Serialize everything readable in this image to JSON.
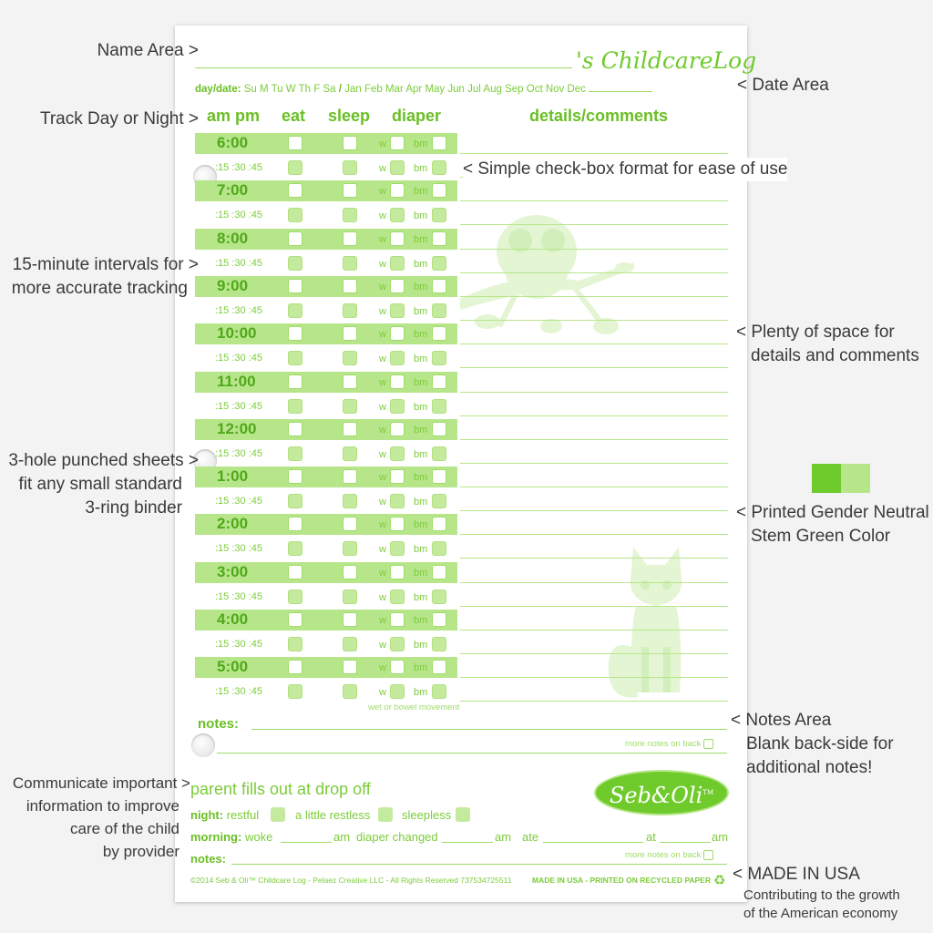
{
  "sheet": {
    "title": "'s ChildcareLog",
    "day_date_label": "day/date:",
    "days": [
      "Su",
      "M",
      "Tu",
      "W",
      "Th",
      "F",
      "Sa"
    ],
    "separator": "/",
    "months": [
      "Jan",
      "Feb",
      "Mar",
      "Apr",
      "May",
      "Jun",
      "Jul",
      "Aug",
      "Sep",
      "Oct",
      "Nov",
      "Dec"
    ],
    "columns": {
      "ampm": "am pm",
      "eat": "eat",
      "sleep": "sleep",
      "diaper": "diaper",
      "details": "details/comments"
    },
    "hours": [
      "6:00",
      "7:00",
      "8:00",
      "9:00",
      "10:00",
      "11:00",
      "12:00",
      "1:00",
      "2:00",
      "3:00",
      "4:00",
      "5:00"
    ],
    "quarters": ":15 :30 :45",
    "w_label": "w",
    "bm_label": "bm",
    "diaper_note": "wet or bowel movement",
    "notes_label": "notes:",
    "more_notes": "more notes on back",
    "parent": {
      "heading": "parent fills out at drop off",
      "night_label": "night:",
      "night_options": [
        "restful",
        "a little restless",
        "sleepless"
      ],
      "morning_label": "morning:",
      "woke": "woke",
      "am": "am",
      "diaper_changed": "diaper changed",
      "ate": "ate",
      "at": "at",
      "notes_label": "notes:",
      "more_notes": "more notes on back"
    },
    "logo": "Seb&Oli",
    "logo_tm": "TM",
    "footer_left": "©2014 Seb & Oli™ Childcare Log - Pelaez Creative LLC - All Rights Reserved 737534725511",
    "footer_right": "MADE IN USA - PRINTED ON RECYCLED PAPER"
  },
  "annotations": {
    "name_area": "Name Area >",
    "date_area": "< Date Area",
    "track_day": "Track Day or Night >",
    "checkbox": "< Simple check-box format for ease of use",
    "intervals_1": "15-minute intervals for >",
    "intervals_2": "more accurate tracking",
    "space_1": "< Plenty of space for",
    "space_2": "details and comments",
    "holes_1": "3-hole punched sheets >",
    "holes_2": "fit any small standard",
    "holes_3": "3-ring binder",
    "color_1": "< Printed Gender Neutral",
    "color_2": "Stem Green Color",
    "notes_1": "< Notes Area",
    "notes_2": "Blank back-side for",
    "notes_3": "additional notes!",
    "comm_1": "Communicate important >",
    "comm_2": "information to improve",
    "comm_3": "care of the child",
    "comm_4": "by provider",
    "usa_1": "< MADE IN USA",
    "usa_2": "Contributing to the growth",
    "usa_3": "of the American economy"
  },
  "colors": {
    "dark_green": "#6fcb2c",
    "light_green": "#b7e68a"
  }
}
